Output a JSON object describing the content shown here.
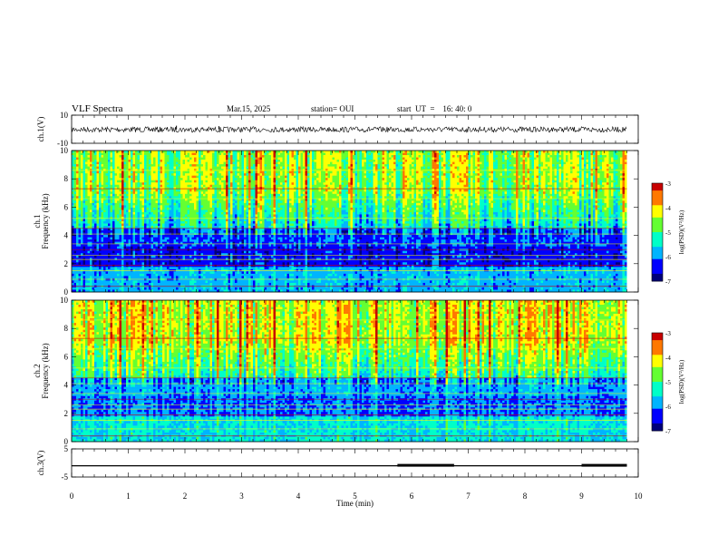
{
  "header": {
    "title": "VLF Spectra",
    "date": "Mar.15, 2025",
    "station": "station= OUI",
    "start": "start  UT  =    16: 40: 0"
  },
  "colors": {
    "spectrogram": [
      "#00007a",
      "#0000ff",
      "#00b4ff",
      "#00ffc8",
      "#64ff32",
      "#ffff00",
      "#ff7800",
      "#c80000"
    ],
    "trace": "#000000"
  },
  "chart_data": [
    {
      "type": "line",
      "name": "ch1-waveform",
      "ylabel": "ch.1(V)",
      "ylim": [
        -10,
        10
      ],
      "yticks": [
        "10",
        "-10"
      ],
      "xlim": [
        0,
        10
      ],
      "x": [
        0,
        1.85,
        2.6,
        9.8
      ],
      "y": [
        0,
        2.5,
        2.2,
        0
      ],
      "baseline": -0.2
    },
    {
      "type": "heatmap",
      "name": "ch1-spectrogram",
      "ylabel": "ch.1\nFrequency  (kHz)",
      "ylim": [
        0,
        10
      ],
      "yticks": [
        "0",
        "2",
        "4",
        "6",
        "8",
        "10"
      ],
      "xlim": [
        0,
        10
      ],
      "colorbar": {
        "label": "log(PSD)(V²/Hz)",
        "range": [
          -7,
          -3
        ],
        "ticks": [
          "-3",
          "-4",
          "-5",
          "-6",
          "-7"
        ]
      }
    },
    {
      "type": "heatmap",
      "name": "ch2-spectrogram",
      "ylabel": "ch.2\nFrequency  (kHz)",
      "ylim": [
        0,
        10
      ],
      "yticks": [
        "0",
        "2",
        "4",
        "6",
        "8",
        "10"
      ],
      "xlim": [
        0,
        10
      ],
      "colorbar": {
        "label": "log(PSD)(V²/Hz)",
        "range": [
          -7,
          -3
        ],
        "ticks": [
          "-3",
          "-4",
          "-5",
          "-6",
          "-7"
        ]
      }
    },
    {
      "type": "line",
      "name": "ch3-level",
      "ylabel": "ch.3(V)",
      "ylim": [
        -5,
        5
      ],
      "yticks": [
        "5",
        "-5"
      ],
      "xlim": [
        0,
        10
      ],
      "xlabel": "Time  (min)",
      "xticks": [
        "0",
        "1",
        "2",
        "3",
        "4",
        "5",
        "6",
        "7",
        "8",
        "9",
        "10"
      ],
      "level": -1,
      "thick_segments": [
        [
          5.75,
          6.75
        ],
        [
          9.0,
          9.8
        ]
      ]
    }
  ]
}
